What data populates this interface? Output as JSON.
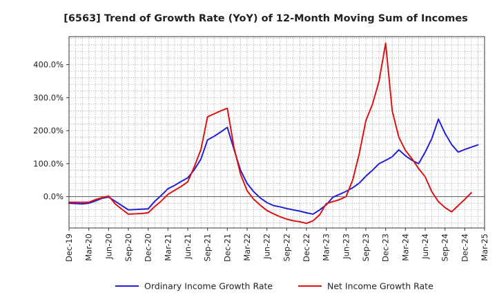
{
  "chart_data": {
    "type": "line",
    "title": "[6563]  Trend of Growth Rate (YoY) of 12-Month Moving Sum of Incomes",
    "xlabel": "",
    "ylabel": "",
    "ylim": [
      -95,
      485
    ],
    "yticks": [
      0,
      100,
      200,
      300,
      400
    ],
    "ytick_labels": [
      "0.0%",
      "100.0%",
      "200.0%",
      "300.0%",
      "400.0%"
    ],
    "x_tick_labels": [
      "Dec-19",
      "Mar-20",
      "Jun-20",
      "Sep-20",
      "Dec-20",
      "Mar-21",
      "Jun-21",
      "Sep-21",
      "Dec-21",
      "Mar-22",
      "Jun-22",
      "Sep-22",
      "Dec-22",
      "Mar-23",
      "Jun-23",
      "Sep-23",
      "Dec-23",
      "Mar-24",
      "Jun-24",
      "Sep-24",
      "Dec-24",
      "Mar-25"
    ],
    "x_count": 64,
    "grid": true,
    "legend_position": "bottom",
    "series": [
      {
        "name": "Ordinary Income Growth Rate",
        "color": "#1f1fd6",
        "start_index": 0,
        "values": [
          -20,
          -21,
          -22,
          -20,
          -13,
          -5,
          -1,
          -14,
          -27,
          -40,
          -39,
          -38,
          -37,
          -14,
          4,
          24,
          34,
          46,
          57,
          82,
          114,
          172,
          183,
          196,
          210,
          144,
          80,
          40,
          15,
          -4,
          -18,
          -27,
          -31,
          -36,
          -40,
          -44,
          -49,
          -53,
          -40,
          -25,
          -2,
          7,
          16,
          27,
          41,
          62,
          80,
          100,
          110,
          121,
          142,
          124,
          110,
          100,
          135,
          176,
          235,
          192,
          158,
          135,
          143,
          150,
          157
        ]
      },
      {
        "name": "Net Income Growth Rate",
        "color": "#dd1111",
        "start_index": 0,
        "values": [
          -17,
          -17,
          -17,
          -17,
          -9,
          -3,
          2,
          -22,
          -38,
          -53,
          -52,
          -51,
          -49,
          -30,
          -13,
          7,
          19,
          31,
          45,
          91,
          143,
          242,
          251,
          260,
          268,
          150,
          68,
          18,
          -8,
          -26,
          -42,
          -52,
          -61,
          -68,
          -73,
          -76,
          -81,
          -73,
          -55,
          -21,
          -15,
          -9,
          0,
          50,
          130,
          230,
          280,
          350,
          465,
          260,
          180,
          140,
          115,
          85,
          60,
          15,
          -15,
          -33,
          -46,
          -27,
          -8,
          12
        ]
      }
    ]
  },
  "legend": {
    "items": [
      "Ordinary Income Growth Rate",
      "Net Income Growth Rate"
    ]
  }
}
